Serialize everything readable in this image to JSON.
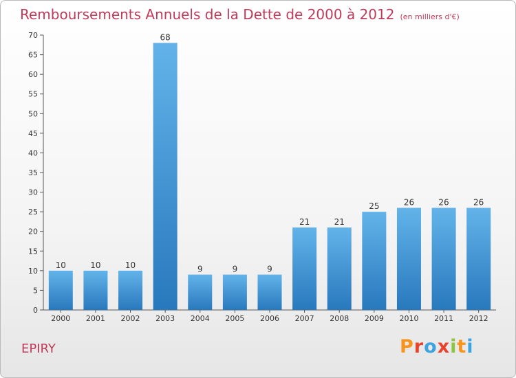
{
  "title": "Remboursements Annuels de la Dette de 2000 à 2012",
  "title_unit": "(en milliers d'€)",
  "commune": "EPIRY",
  "logo": {
    "letters": [
      "P",
      "r",
      "o",
      "x",
      "i",
      "t",
      "i"
    ],
    "colors": [
      "#f7941d",
      "#e8412c",
      "#3aa3e0",
      "#e8412c",
      "#8cc63f",
      "#f7941d",
      "#3aa3e0"
    ]
  },
  "colors": {
    "title": "#c03a5a",
    "bar_top": "#63b3ea",
    "bar_bottom": "#2878bd"
  },
  "chart_data": {
    "type": "bar",
    "title": "Remboursements Annuels de la Dette de 2000 à 2012",
    "categories": [
      "2000",
      "2001",
      "2002",
      "2003",
      "2004",
      "2005",
      "2006",
      "2007",
      "2008",
      "2009",
      "2010",
      "2011",
      "2012"
    ],
    "values": [
      10,
      10,
      10,
      68,
      9,
      9,
      9,
      21,
      21,
      25,
      26,
      26,
      26
    ],
    "ylim": [
      0,
      70
    ],
    "yticks": [
      0,
      5,
      10,
      15,
      20,
      25,
      30,
      35,
      40,
      45,
      50,
      55,
      60,
      65,
      70
    ],
    "grid": false,
    "data_labels": true
  }
}
